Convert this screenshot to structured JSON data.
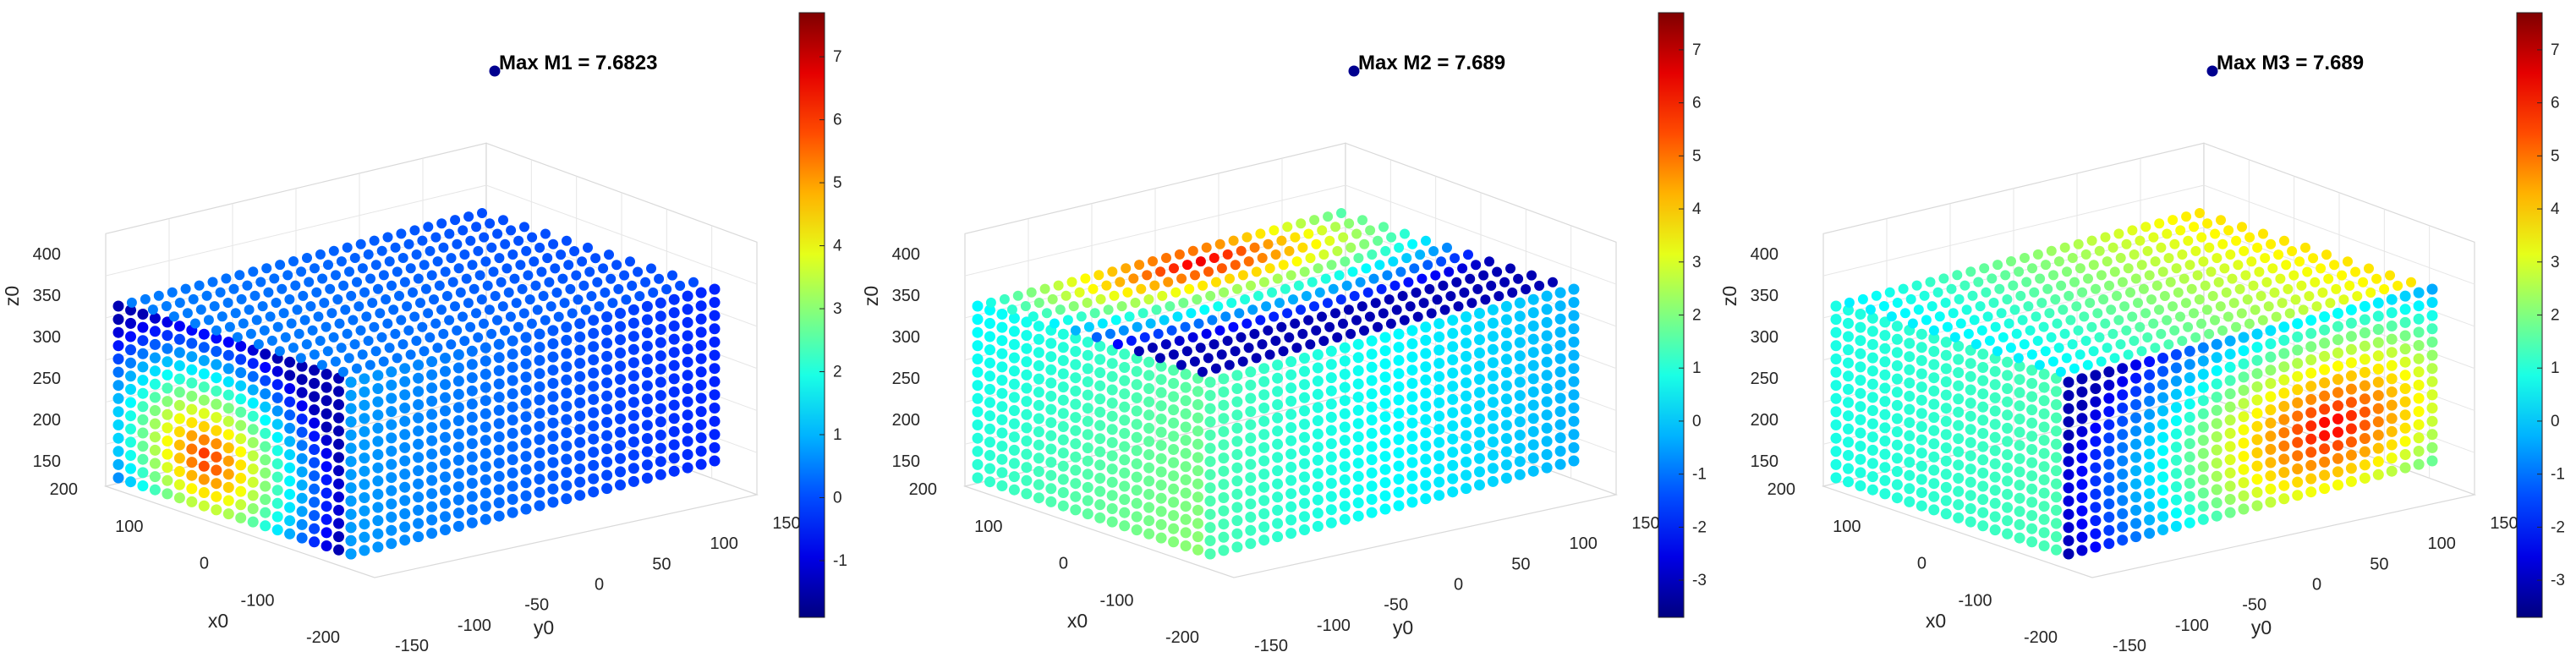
{
  "chart_data": [
    {
      "type": "scatter3d",
      "title": "",
      "annotation": "Max M1 = 7.6823",
      "xlabel": "x0",
      "ylabel": "y0",
      "zlabel": "z0",
      "xlim": [
        -200,
        200
      ],
      "ylim": [
        -150,
        150
      ],
      "zlim": [
        150,
        400
      ],
      "xticks": [
        "-200",
        "-100",
        "0",
        "100",
        "200"
      ],
      "yticks": [
        "-150",
        "-100",
        "-50",
        "0",
        "50",
        "100",
        "150"
      ],
      "zticks": [
        "150",
        "200",
        "250",
        "300",
        "350",
        "400"
      ],
      "colorbar": {
        "min": -1.9,
        "max": 7.7,
        "ticks": [
          "-1",
          "0",
          "1",
          "2",
          "3",
          "4",
          "5",
          "6",
          "7"
        ],
        "colormap": "jet"
      },
      "max_value": 7.6823,
      "hotspot_face": "front-x",
      "grid": true
    },
    {
      "type": "scatter3d",
      "title": "",
      "annotation": "Max M2 = 7.689",
      "xlabel": "x0",
      "ylabel": "y0",
      "zlabel": "z0",
      "xlim": [
        -200,
        200
      ],
      "ylim": [
        -150,
        150
      ],
      "zlim": [
        150,
        400
      ],
      "xticks": [
        "-200",
        "-100",
        "0",
        "100",
        "200"
      ],
      "yticks": [
        "-150",
        "-100",
        "-50",
        "0",
        "50",
        "100",
        "150"
      ],
      "zticks": [
        "150",
        "200",
        "250",
        "300",
        "350",
        "400"
      ],
      "colorbar": {
        "min": -3.7,
        "max": 7.7,
        "ticks": [
          "-3",
          "-2",
          "-1",
          "0",
          "1",
          "2",
          "3",
          "4",
          "5",
          "6",
          "7"
        ],
        "colormap": "jet"
      },
      "max_value": 7.689,
      "hotspot_face": "top",
      "grid": true
    },
    {
      "type": "scatter3d",
      "title": "",
      "annotation": "Max M3 = 7.689",
      "xlabel": "x0",
      "ylabel": "y0",
      "zlabel": "z0",
      "xlim": [
        -200,
        200
      ],
      "ylim": [
        -150,
        150
      ],
      "zlim": [
        150,
        400
      ],
      "xticks": [
        "-200",
        "-100",
        "0",
        "100",
        "200"
      ],
      "yticks": [
        "-150",
        "-100",
        "-50",
        "0",
        "50",
        "100",
        "150"
      ],
      "zticks": [
        "150",
        "200",
        "250",
        "300",
        "350",
        "400"
      ],
      "colorbar": {
        "min": -3.7,
        "max": 7.7,
        "ticks": [
          "-3",
          "-2",
          "-1",
          "0",
          "1",
          "2",
          "3",
          "4",
          "5",
          "6",
          "7"
        ],
        "colormap": "jet"
      },
      "max_value": 7.689,
      "hotspot_face": "front-y",
      "grid": true
    }
  ]
}
